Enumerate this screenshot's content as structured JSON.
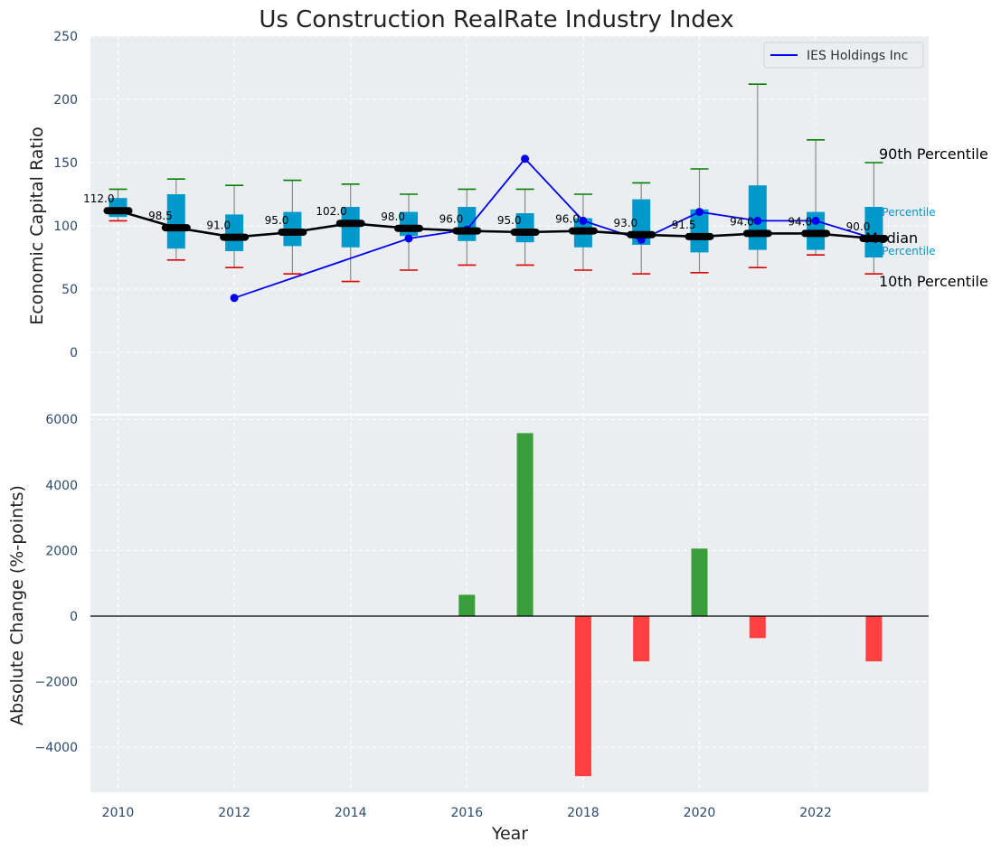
{
  "chart_data": [
    {
      "type": "box-line",
      "title": "Us Construction RealRate Industry Index",
      "xlabel": "",
      "ylabel": "Economic Capital Ratio",
      "ylim": [
        -50,
        250
      ],
      "yticks": [
        "0",
        "50",
        "100",
        "150",
        "200",
        "250"
      ],
      "years": [
        2010,
        2011,
        2012,
        2013,
        2014,
        2015,
        2016,
        2017,
        2018,
        2019,
        2020,
        2021,
        2022,
        2023
      ],
      "medians": [
        112,
        98.5,
        91,
        95,
        102,
        98,
        96,
        95,
        96,
        93,
        91.5,
        94,
        94,
        90
      ],
      "median_labels": [
        "112.0",
        "98.5",
        "91.0",
        "95.0",
        "102.0",
        "98.0",
        "96.0",
        "95.0",
        "96.0",
        "93.0",
        "91.5",
        "94.0",
        "94.0",
        "90.0"
      ],
      "q1": [
        107,
        82,
        80,
        84,
        83,
        92,
        88,
        87,
        83,
        85,
        79,
        81,
        81,
        75
      ],
      "q3": [
        122,
        125,
        109,
        111,
        115,
        111,
        115,
        110,
        106,
        121,
        113,
        132,
        111,
        115
      ],
      "p10": [
        104,
        73,
        67,
        62,
        56,
        65,
        69,
        69,
        65,
        62,
        63,
        67,
        77,
        62
      ],
      "p90": [
        129,
        137,
        132,
        136,
        133,
        125,
        129,
        129,
        125,
        134,
        145,
        212,
        168,
        150
      ],
      "company": {
        "name": "IES Holdings Inc",
        "years": [
          2012,
          2015,
          2016,
          2017,
          2018,
          2019,
          2020,
          2021,
          2022,
          2023
        ],
        "values": [
          43,
          90,
          97,
          153,
          104,
          89,
          111,
          104,
          104,
          90
        ]
      },
      "legend": [
        "IES Holdings Inc"
      ],
      "legend_position": "top-right",
      "annotations": [
        "90th Percentile",
        "75th Percentile",
        "Median",
        "25th Percentile",
        "10th Percentile"
      ],
      "annotation_short": {
        "p75": "h Percentile",
        "p25": "h Percentile"
      },
      "colors": {
        "box": "#0099cc",
        "company_line": "#0000ee",
        "median_line": "#000000",
        "whisker_top": "#008000",
        "whisker_bottom": "#dd0000",
        "panel_bg": "#eaeef0"
      }
    },
    {
      "type": "bar",
      "title": "",
      "xlabel": "Year",
      "ylabel": "Absolute Change (%-points)",
      "ylim": [
        -5400,
        6000
      ],
      "yticks": [
        "−4000",
        "−2000",
        "0",
        "2000",
        "4000",
        "6000"
      ],
      "xticks": [
        "2010",
        "2012",
        "2014",
        "2016",
        "2018",
        "2020",
        "2022"
      ],
      "years": [
        2016,
        2017,
        2018,
        2019,
        2020,
        2021,
        2023
      ],
      "values": [
        650,
        5580,
        -4880,
        -1380,
        2060,
        -670,
        -1380
      ],
      "colors": {
        "positive": "#3a9e3c",
        "negative": "#ff4040"
      }
    }
  ]
}
